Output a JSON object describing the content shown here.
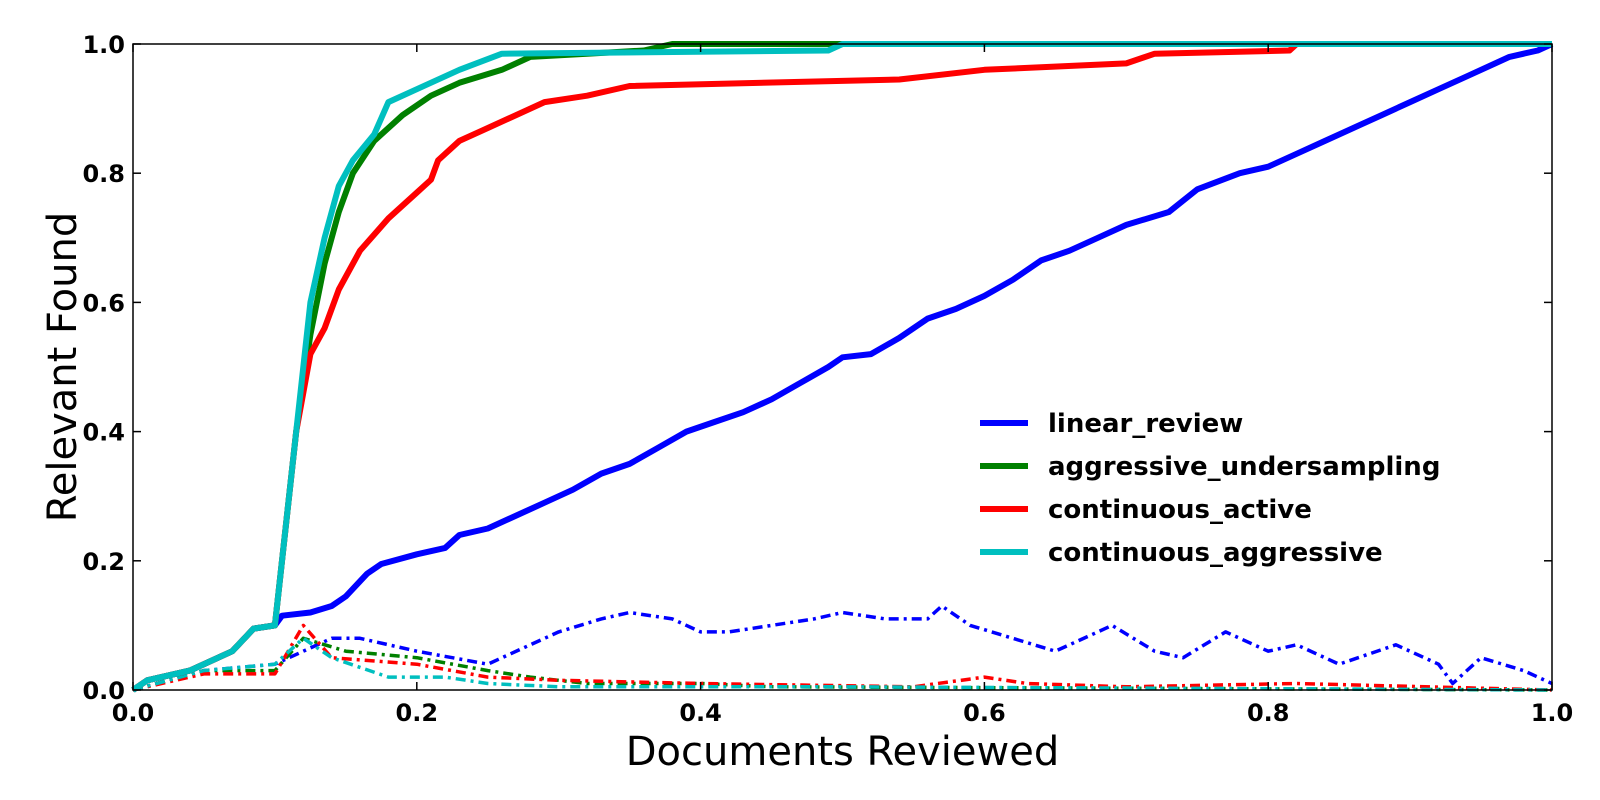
{
  "chart_data": {
    "type": "line",
    "xlabel": "Documents Reviewed",
    "ylabel": "Relevant Found",
    "xlim": [
      0.0,
      1.0
    ],
    "ylim": [
      0.0,
      1.0
    ],
    "xticks": [
      "0.0",
      "0.2",
      "0.4",
      "0.6",
      "0.8",
      "1.0"
    ],
    "yticks": [
      "0.0",
      "0.2",
      "0.4",
      "0.6",
      "0.8",
      "1.0"
    ],
    "grid": false,
    "legend_position": "center-right",
    "series": [
      {
        "name": "linear_review",
        "color": "#0000ff",
        "style": "solid",
        "points": [
          [
            0.0,
            0.0
          ],
          [
            0.01,
            0.015
          ],
          [
            0.04,
            0.03
          ],
          [
            0.07,
            0.06
          ],
          [
            0.085,
            0.095
          ],
          [
            0.1,
            0.1
          ],
          [
            0.105,
            0.115
          ],
          [
            0.125,
            0.12
          ],
          [
            0.14,
            0.13
          ],
          [
            0.15,
            0.145
          ],
          [
            0.165,
            0.18
          ],
          [
            0.175,
            0.195
          ],
          [
            0.2,
            0.21
          ],
          [
            0.22,
            0.22
          ],
          [
            0.23,
            0.24
          ],
          [
            0.25,
            0.25
          ],
          [
            0.27,
            0.27
          ],
          [
            0.29,
            0.29
          ],
          [
            0.31,
            0.31
          ],
          [
            0.33,
            0.335
          ],
          [
            0.35,
            0.35
          ],
          [
            0.37,
            0.375
          ],
          [
            0.39,
            0.4
          ],
          [
            0.41,
            0.415
          ],
          [
            0.43,
            0.43
          ],
          [
            0.45,
            0.45
          ],
          [
            0.47,
            0.475
          ],
          [
            0.49,
            0.5
          ],
          [
            0.5,
            0.515
          ],
          [
            0.52,
            0.52
          ],
          [
            0.54,
            0.545
          ],
          [
            0.56,
            0.575
          ],
          [
            0.58,
            0.59
          ],
          [
            0.6,
            0.61
          ],
          [
            0.62,
            0.635
          ],
          [
            0.64,
            0.665
          ],
          [
            0.66,
            0.68
          ],
          [
            0.68,
            0.7
          ],
          [
            0.7,
            0.72
          ],
          [
            0.73,
            0.74
          ],
          [
            0.75,
            0.775
          ],
          [
            0.78,
            0.8
          ],
          [
            0.8,
            0.81
          ],
          [
            0.82,
            0.83
          ],
          [
            0.84,
            0.85
          ],
          [
            0.86,
            0.87
          ],
          [
            0.88,
            0.89
          ],
          [
            0.9,
            0.91
          ],
          [
            0.92,
            0.93
          ],
          [
            0.94,
            0.95
          ],
          [
            0.96,
            0.97
          ],
          [
            0.97,
            0.98
          ],
          [
            0.99,
            0.99
          ],
          [
            1.0,
            1.0
          ]
        ]
      },
      {
        "name": "aggressive_undersampling",
        "color": "#008000",
        "style": "solid",
        "points": [
          [
            0.0,
            0.0
          ],
          [
            0.01,
            0.015
          ],
          [
            0.04,
            0.03
          ],
          [
            0.07,
            0.06
          ],
          [
            0.085,
            0.095
          ],
          [
            0.1,
            0.1
          ],
          [
            0.105,
            0.2
          ],
          [
            0.115,
            0.4
          ],
          [
            0.125,
            0.55
          ],
          [
            0.135,
            0.66
          ],
          [
            0.145,
            0.74
          ],
          [
            0.155,
            0.8
          ],
          [
            0.17,
            0.85
          ],
          [
            0.19,
            0.89
          ],
          [
            0.21,
            0.92
          ],
          [
            0.23,
            0.94
          ],
          [
            0.26,
            0.96
          ],
          [
            0.28,
            0.98
          ],
          [
            0.32,
            0.985
          ],
          [
            0.36,
            0.99
          ],
          [
            0.38,
            1.0
          ],
          [
            1.0,
            1.0
          ]
        ]
      },
      {
        "name": "continuous_active",
        "color": "#ff0000",
        "style": "solid",
        "points": [
          [
            0.0,
            0.0
          ],
          [
            0.01,
            0.015
          ],
          [
            0.04,
            0.03
          ],
          [
            0.07,
            0.06
          ],
          [
            0.085,
            0.095
          ],
          [
            0.1,
            0.1
          ],
          [
            0.105,
            0.2
          ],
          [
            0.115,
            0.4
          ],
          [
            0.125,
            0.52
          ],
          [
            0.135,
            0.56
          ],
          [
            0.145,
            0.62
          ],
          [
            0.16,
            0.68
          ],
          [
            0.18,
            0.73
          ],
          [
            0.2,
            0.77
          ],
          [
            0.21,
            0.79
          ],
          [
            0.215,
            0.82
          ],
          [
            0.23,
            0.85
          ],
          [
            0.25,
            0.87
          ],
          [
            0.27,
            0.89
          ],
          [
            0.29,
            0.91
          ],
          [
            0.32,
            0.92
          ],
          [
            0.35,
            0.935
          ],
          [
            0.54,
            0.945
          ],
          [
            0.6,
            0.96
          ],
          [
            0.7,
            0.97
          ],
          [
            0.72,
            0.985
          ],
          [
            0.815,
            0.99
          ],
          [
            0.82,
            1.0
          ],
          [
            1.0,
            1.0
          ]
        ]
      },
      {
        "name": "continuous_aggressive",
        "color": "#00bfbf",
        "style": "solid",
        "points": [
          [
            0.0,
            0.0
          ],
          [
            0.01,
            0.015
          ],
          [
            0.04,
            0.03
          ],
          [
            0.07,
            0.06
          ],
          [
            0.085,
            0.095
          ],
          [
            0.1,
            0.1
          ],
          [
            0.105,
            0.2
          ],
          [
            0.115,
            0.4
          ],
          [
            0.125,
            0.6
          ],
          [
            0.135,
            0.7
          ],
          [
            0.145,
            0.78
          ],
          [
            0.155,
            0.82
          ],
          [
            0.17,
            0.86
          ],
          [
            0.18,
            0.91
          ],
          [
            0.2,
            0.93
          ],
          [
            0.23,
            0.96
          ],
          [
            0.26,
            0.985
          ],
          [
            0.49,
            0.99
          ],
          [
            0.5,
            1.0
          ],
          [
            1.0,
            1.0
          ]
        ]
      },
      {
        "name": "",
        "color": "#0000ff",
        "style": "dashdot",
        "points": [
          [
            0.0,
            0.0
          ],
          [
            0.05,
            0.03
          ],
          [
            0.1,
            0.04
          ],
          [
            0.12,
            0.06
          ],
          [
            0.14,
            0.08
          ],
          [
            0.16,
            0.08
          ],
          [
            0.2,
            0.06
          ],
          [
            0.25,
            0.04
          ],
          [
            0.28,
            0.07
          ],
          [
            0.3,
            0.09
          ],
          [
            0.33,
            0.11
          ],
          [
            0.35,
            0.12
          ],
          [
            0.38,
            0.11
          ],
          [
            0.4,
            0.09
          ],
          [
            0.42,
            0.09
          ],
          [
            0.45,
            0.1
          ],
          [
            0.48,
            0.11
          ],
          [
            0.5,
            0.12
          ],
          [
            0.53,
            0.11
          ],
          [
            0.56,
            0.11
          ],
          [
            0.57,
            0.13
          ],
          [
            0.59,
            0.1
          ],
          [
            0.62,
            0.08
          ],
          [
            0.65,
            0.06
          ],
          [
            0.69,
            0.1
          ],
          [
            0.72,
            0.06
          ],
          [
            0.74,
            0.05
          ],
          [
            0.77,
            0.09
          ],
          [
            0.8,
            0.06
          ],
          [
            0.82,
            0.07
          ],
          [
            0.85,
            0.04
          ],
          [
            0.89,
            0.07
          ],
          [
            0.92,
            0.04
          ],
          [
            0.93,
            0.01
          ],
          [
            0.95,
            0.05
          ],
          [
            0.98,
            0.03
          ],
          [
            1.0,
            0.01
          ]
        ]
      },
      {
        "name": "",
        "color": "#008000",
        "style": "dashdot",
        "points": [
          [
            0.0,
            0.0
          ],
          [
            0.05,
            0.03
          ],
          [
            0.1,
            0.03
          ],
          [
            0.12,
            0.08
          ],
          [
            0.15,
            0.06
          ],
          [
            0.2,
            0.05
          ],
          [
            0.25,
            0.03
          ],
          [
            0.28,
            0.02
          ],
          [
            0.32,
            0.01
          ],
          [
            0.4,
            0.01
          ],
          [
            0.45,
            0.005
          ],
          [
            1.0,
            0.0
          ]
        ]
      },
      {
        "name": "",
        "color": "#ff0000",
        "style": "dashdot",
        "points": [
          [
            0.0,
            0.0
          ],
          [
            0.05,
            0.025
          ],
          [
            0.1,
            0.025
          ],
          [
            0.12,
            0.1
          ],
          [
            0.14,
            0.05
          ],
          [
            0.2,
            0.04
          ],
          [
            0.25,
            0.02
          ],
          [
            0.3,
            0.015
          ],
          [
            0.4,
            0.01
          ],
          [
            0.55,
            0.005
          ],
          [
            0.6,
            0.02
          ],
          [
            0.63,
            0.01
          ],
          [
            0.7,
            0.005
          ],
          [
            0.82,
            0.01
          ],
          [
            1.0,
            0.0
          ]
        ]
      },
      {
        "name": "",
        "color": "#00bfbf",
        "style": "dashdot",
        "points": [
          [
            0.0,
            0.0
          ],
          [
            0.05,
            0.03
          ],
          [
            0.1,
            0.04
          ],
          [
            0.12,
            0.08
          ],
          [
            0.14,
            0.05
          ],
          [
            0.18,
            0.02
          ],
          [
            0.22,
            0.02
          ],
          [
            0.25,
            0.01
          ],
          [
            0.3,
            0.005
          ],
          [
            0.5,
            0.005
          ],
          [
            1.0,
            0.0
          ]
        ]
      }
    ]
  }
}
